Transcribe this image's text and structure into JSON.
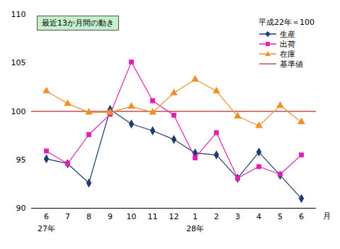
{
  "chart_data": {
    "type": "line",
    "annotations": [
      {
        "text": "最近13か月間の動き"
      }
    ],
    "legend_title": "平成22年＝100",
    "legend": "top-right",
    "xlabel": "月",
    "categories": [
      "6",
      "7",
      "8",
      "9",
      "10",
      "11",
      "12",
      "1",
      "2",
      "3",
      "4",
      "5",
      "6"
    ],
    "x_group_labels": [
      {
        "label": "27年",
        "at": 0
      },
      {
        "label": "28年",
        "at": 7
      }
    ],
    "series": [
      {
        "name": "生産",
        "color": "#1f3c73",
        "marker": "diamond",
        "values": [
          95.1,
          94.6,
          92.6,
          100.2,
          98.7,
          98.0,
          97.1,
          95.7,
          95.5,
          93.1,
          95.8,
          93.4,
          91.0
        ]
      },
      {
        "name": "出荷",
        "color": "#e61eb4",
        "marker": "square",
        "values": [
          95.9,
          94.6,
          97.6,
          99.7,
          105.1,
          101.1,
          99.6,
          95.2,
          97.8,
          93.1,
          94.3,
          93.5,
          95.5
        ]
      },
      {
        "name": "在庫",
        "color": "#f0902a",
        "marker": "triangle",
        "values": [
          102.1,
          100.8,
          99.9,
          99.9,
          100.5,
          99.9,
          101.9,
          103.3,
          102.1,
          99.5,
          98.5,
          100.6,
          98.9
        ]
      }
    ],
    "reference_line": {
      "name": "基準値",
      "value": 100,
      "color": "#c0504d"
    },
    "ylim": [
      90,
      110
    ],
    "yticks": [
      90,
      95,
      100,
      105,
      110
    ],
    "grid": false
  }
}
